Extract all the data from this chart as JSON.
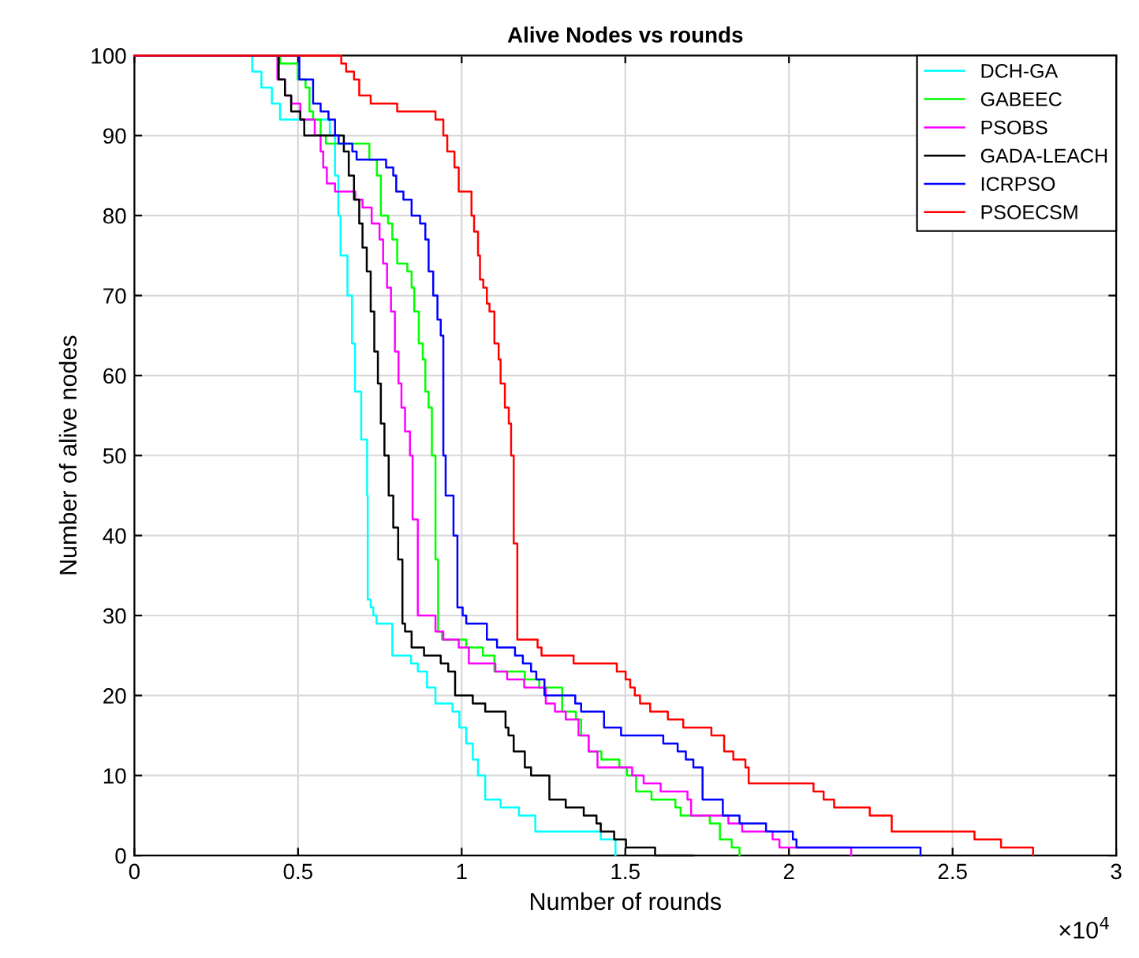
{
  "chart_data": {
    "type": "step",
    "title": "Alive Nodes vs rounds",
    "xlabel": "Number of rounds",
    "ylabel": "Number of alive nodes",
    "annotations": [
      "×10$^{4}$"
    ],
    "xlim": [
      0,
      3
    ],
    "xticks": [
      0,
      0.5,
      1,
      1.5,
      2,
      2.5,
      3
    ],
    "ylim": [
      0,
      100
    ],
    "yticks": [
      0,
      10,
      20,
      30,
      40,
      50,
      60,
      70,
      80,
      90,
      100
    ],
    "grid": true,
    "legend": "top right",
    "marker": "none",
    "line_style": "solid",
    "series": [
      {
        "name": "DCH-GA",
        "color": "#00ffff",
        "x": [
          0,
          0.36,
          0.388,
          0.42,
          0.445,
          0.597,
          0.613,
          0.623,
          0.63,
          0.651,
          0.665,
          0.674,
          0.693,
          0.711,
          0.713,
          0.722,
          0.73,
          0.74,
          0.788,
          0.845,
          0.866,
          0.894,
          0.92,
          0.972,
          0.993,
          1.014,
          1.034,
          1.05,
          1.072,
          1.119,
          1.175,
          1.225,
          1.425,
          1.47
        ],
        "values": [
          100,
          98,
          96,
          94,
          92,
          90,
          85,
          80,
          75,
          70,
          64,
          58,
          52,
          45,
          32,
          31,
          30,
          29,
          25,
          24,
          23,
          21,
          19,
          18,
          16,
          14,
          12,
          10,
          7,
          6,
          5,
          3,
          2,
          0
        ]
      },
      {
        "name": "GABEEC",
        "color": "#00ff00",
        "x": [
          0,
          0.445,
          0.499,
          0.523,
          0.535,
          0.546,
          0.569,
          0.585,
          0.718,
          0.741,
          0.753,
          0.775,
          0.788,
          0.803,
          0.834,
          0.847,
          0.855,
          0.869,
          0.881,
          0.889,
          0.899,
          0.909,
          0.92,
          0.928,
          0.94,
          1.014,
          1.065,
          1.1,
          1.193,
          1.237,
          1.307,
          1.349,
          1.365,
          1.388,
          1.427,
          1.482,
          1.505,
          1.533,
          1.58,
          1.653,
          1.669,
          1.758,
          1.789,
          1.825,
          1.849
        ],
        "values": [
          100,
          99,
          97,
          96,
          93,
          92,
          90,
          89,
          87,
          85,
          80,
          79,
          77,
          74,
          73,
          71,
          68,
          64,
          62,
          58,
          56,
          50,
          37,
          28,
          27,
          26,
          25,
          23,
          22,
          21,
          18,
          17,
          15,
          13,
          12,
          11,
          10,
          8,
          7,
          6,
          5,
          4,
          2,
          1,
          0
        ]
      },
      {
        "name": "PSOBS",
        "color": "#ff00ff",
        "x": [
          0,
          0.437,
          0.46,
          0.479,
          0.507,
          0.551,
          0.569,
          0.577,
          0.588,
          0.613,
          0.675,
          0.697,
          0.725,
          0.749,
          0.76,
          0.772,
          0.784,
          0.796,
          0.807,
          0.816,
          0.827,
          0.842,
          0.85,
          0.866,
          0.92,
          0.944,
          0.991,
          1.022,
          1.103,
          1.139,
          1.191,
          1.257,
          1.285,
          1.318,
          1.357,
          1.388,
          1.415,
          1.521,
          1.556,
          1.608,
          1.69,
          1.701,
          1.815,
          1.857,
          1.95,
          1.971,
          2.19
        ],
        "values": [
          100,
          97,
          95,
          94,
          92,
          90,
          88,
          86,
          84,
          83,
          82,
          81,
          79,
          77,
          74,
          71,
          68,
          63,
          59,
          56,
          53,
          50,
          42,
          30,
          28,
          27,
          26,
          24,
          23,
          22,
          21,
          19,
          18,
          17,
          15,
          13,
          11,
          10,
          9,
          8,
          7,
          5,
          4,
          3,
          2,
          1,
          0
        ]
      },
      {
        "name": "GADA-LEACH",
        "color": "#000000",
        "x": [
          0,
          0.441,
          0.46,
          0.479,
          0.507,
          0.519,
          0.64,
          0.655,
          0.671,
          0.687,
          0.697,
          0.71,
          0.722,
          0.733,
          0.744,
          0.753,
          0.764,
          0.777,
          0.791,
          0.806,
          0.819,
          0.827,
          0.847,
          0.885,
          0.936,
          0.959,
          0.98,
          1.034,
          1.072,
          1.134,
          1.143,
          1.159,
          1.193,
          1.212,
          1.268,
          1.318,
          1.373,
          1.412,
          1.425,
          1.466,
          1.502,
          1.591,
          1.708
        ],
        "values": [
          100,
          97,
          95,
          93,
          92,
          90,
          88,
          85,
          82,
          79,
          76,
          73,
          68,
          63,
          59,
          54,
          50,
          45,
          41,
          37,
          29,
          28,
          26,
          25,
          24,
          23,
          20,
          19,
          18,
          16,
          15,
          13,
          11,
          10,
          7,
          6,
          5,
          4,
          3,
          2,
          1,
          0,
          0
        ]
      },
      {
        "name": "ICRPSO",
        "color": "#0000ff",
        "x": [
          0,
          0.504,
          0.546,
          0.569,
          0.593,
          0.613,
          0.624,
          0.666,
          0.679,
          0.769,
          0.791,
          0.8,
          0.822,
          0.847,
          0.873,
          0.889,
          0.899,
          0.913,
          0.926,
          0.936,
          0.944,
          0.951,
          0.975,
          0.987,
          1.003,
          1.014,
          1.077,
          1.108,
          1.163,
          1.187,
          1.212,
          1.228,
          1.253,
          1.347,
          1.365,
          1.435,
          1.487,
          1.616,
          1.66,
          1.685,
          1.708,
          1.736,
          1.798,
          1.849,
          1.93,
          2.012,
          2.023,
          2.402
        ],
        "values": [
          100,
          97,
          94,
          93,
          92,
          90,
          89,
          88,
          87,
          86,
          85,
          83,
          82,
          80,
          79,
          77,
          73,
          70,
          67,
          65,
          50,
          45,
          40,
          31,
          30,
          29,
          27,
          26,
          25,
          24,
          23,
          22,
          20,
          19,
          18,
          16,
          15,
          14,
          13,
          12,
          11,
          7,
          5,
          4,
          3,
          2,
          1,
          0
        ]
      },
      {
        "name": "PSOECSM",
        "color": "#ff0000",
        "x": [
          0,
          0.632,
          0.647,
          0.671,
          0.687,
          0.722,
          0.803,
          0.92,
          0.944,
          0.956,
          0.978,
          0.991,
          1.03,
          1.038,
          1.05,
          1.056,
          1.066,
          1.077,
          1.085,
          1.1,
          1.113,
          1.119,
          1.132,
          1.144,
          1.151,
          1.159,
          1.17,
          1.232,
          1.244,
          1.342,
          1.474,
          1.501,
          1.515,
          1.529,
          1.545,
          1.576,
          1.63,
          1.677,
          1.763,
          1.802,
          1.83,
          1.867,
          1.877,
          2.075,
          2.106,
          2.138,
          2.247,
          2.314,
          2.567,
          2.648,
          2.746
        ],
        "values": [
          100,
          99,
          98,
          97,
          95,
          94,
          93,
          92,
          90,
          88,
          86,
          83,
          80,
          78,
          75,
          72,
          71,
          69,
          68,
          64,
          62,
          59,
          56,
          54,
          50,
          39,
          27,
          26,
          25,
          24,
          23,
          22,
          21,
          20,
          19,
          18,
          17,
          16,
          15,
          13,
          12,
          11,
          9,
          8,
          7,
          6,
          5,
          3,
          2,
          1,
          0
        ]
      }
    ]
  }
}
